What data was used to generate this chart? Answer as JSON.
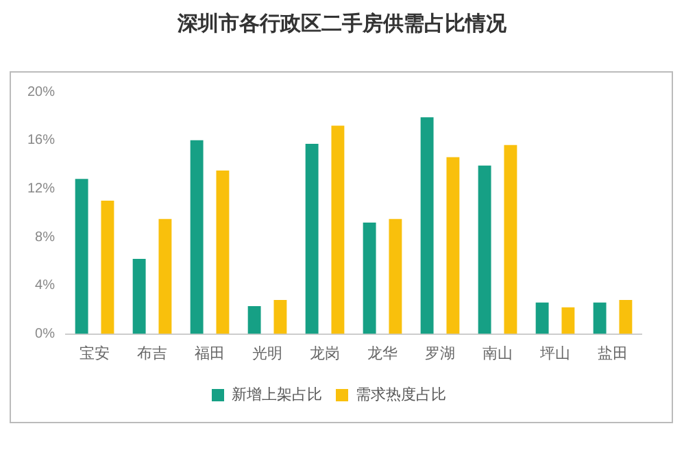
{
  "chart_data": {
    "type": "bar",
    "title": "深圳市各行政区二手房供需占比情况",
    "categories": [
      "宝安",
      "布吉",
      "福田",
      "光明",
      "龙岗",
      "龙华",
      "罗湖",
      "南山",
      "坪山",
      "盐田"
    ],
    "series": [
      {
        "name": "新增上架占比",
        "color": "#16a085",
        "values": [
          12.8,
          6.2,
          16.0,
          2.3,
          15.7,
          9.2,
          17.9,
          13.9,
          2.6,
          2.6
        ]
      },
      {
        "name": "需求热度占比",
        "color": "#f9c00c",
        "values": [
          11,
          9.5,
          13.5,
          2.8,
          17.2,
          9.5,
          14.6,
          15.6,
          2.2,
          2.8
        ]
      }
    ],
    "ylim": [
      0,
      20
    ],
    "yticks": [
      {
        "value": 0,
        "label": "0%"
      },
      {
        "value": 4,
        "label": "4%"
      },
      {
        "value": 8,
        "label": "8%"
      },
      {
        "value": 12,
        "label": "12%"
      },
      {
        "value": 16,
        "label": "16%"
      },
      {
        "value": 20,
        "label": "20%"
      }
    ],
    "grid": false,
    "legend": "bottom"
  }
}
